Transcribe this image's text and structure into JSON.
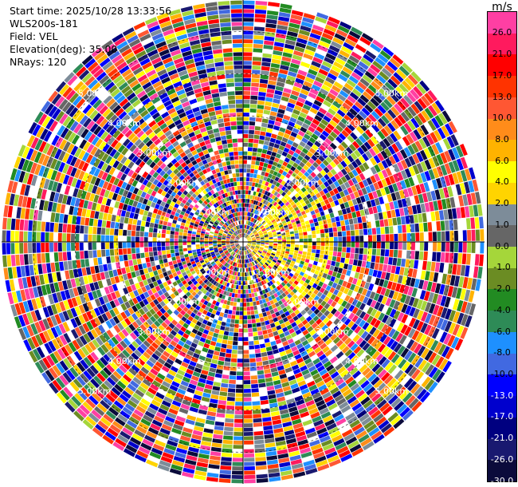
{
  "header": {
    "start_time": "Start time: 2025/10/28 13:33:56",
    "station": "WLS200s-181",
    "field": "Field: VEL",
    "elevation": "Elevation(deg): 35.00",
    "nrays": "NRays: 120"
  },
  "chart_data": {
    "type": "heatmap",
    "projection": "polar-ppi",
    "n_rays": 120,
    "range_unit": "km",
    "range_rings": [
      {
        "label": "1.00km",
        "value": 1.0
      },
      {
        "label": "2.00km",
        "value": 2.0
      },
      {
        "label": "3.00km",
        "value": 3.0
      },
      {
        "label": "4.00km",
        "value": 4.0
      },
      {
        "label": "5.00km",
        "value": 5.0
      }
    ],
    "max_range_km": 5.75,
    "gates": 55,
    "colorbar": {
      "unit": "m/s",
      "levels": [
        {
          "label": "26.0",
          "color": "#ff3fa3"
        },
        {
          "label": "21.0",
          "color": "#ff1a5e"
        },
        {
          "label": "17.0",
          "color": "#ff0000"
        },
        {
          "label": "13.0",
          "color": "#ff3300"
        },
        {
          "label": "10.0",
          "color": "#ff5733"
        },
        {
          "label": "8.0",
          "color": "#ff8c1a"
        },
        {
          "label": "6.0",
          "color": "#ffb300"
        },
        {
          "label": "4.0",
          "color": "#ffff00"
        },
        {
          "label": "2.0",
          "color": "#ffd400"
        },
        {
          "label": "1.0",
          "color": "#7d8c99"
        },
        {
          "label": "0.0",
          "color": "#666666"
        },
        {
          "label": "-1.0",
          "color": "#a5d63a"
        },
        {
          "label": "-2.0",
          "color": "#6b8c23"
        },
        {
          "label": "-4.0",
          "color": "#228b22"
        },
        {
          "label": "-6.0",
          "color": "#2e8b57"
        },
        {
          "label": "-8.0",
          "color": "#1e90ff"
        },
        {
          "label": "-10.0",
          "color": "#4169e1"
        },
        {
          "label": "-13.0",
          "color": "#0000ff"
        },
        {
          "label": "-17.0",
          "color": "#0000cd"
        },
        {
          "label": "-21.0",
          "color": "#000080"
        },
        {
          "label": "-26.0",
          "color": "#191970"
        },
        {
          "label": "-30.0",
          "color": "#0b0b3b"
        }
      ]
    }
  }
}
